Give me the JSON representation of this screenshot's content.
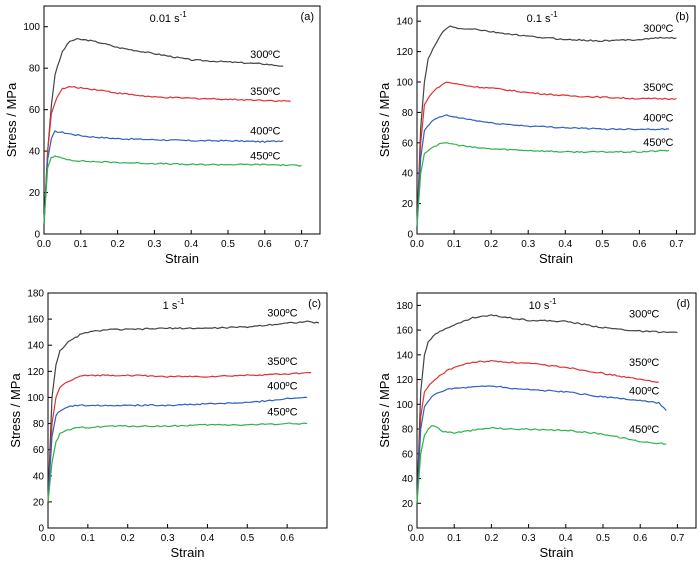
{
  "colors": {
    "300": "#444444",
    "350": "#e03131",
    "400": "#2f5fc4",
    "450": "#2fb24a"
  },
  "chart_data": [
    {
      "type": "line",
      "panel": "(a)",
      "rate": "0.01 s",
      "rate_exp": "-1",
      "xlabel": "Strain",
      "ylabel": "Stress / MPa",
      "xlim": [
        0,
        0.75
      ],
      "ylim": [
        0,
        110
      ],
      "xticks": [
        "0.0",
        "0.1",
        "0.2",
        "0.3",
        "0.4",
        "0.5",
        "0.6",
        "0.7"
      ],
      "yticks": [
        "0",
        "20",
        "40",
        "60",
        "80",
        "100"
      ],
      "series": [
        {
          "name": "300ºC",
          "temp": "300",
          "label_x": 0.56,
          "label_y": 85,
          "x": [
            0,
            0.01,
            0.02,
            0.03,
            0.05,
            0.07,
            0.09,
            0.12,
            0.16,
            0.2,
            0.3,
            0.4,
            0.5,
            0.6,
            0.65
          ],
          "y": [
            5,
            40,
            62,
            77,
            88,
            93,
            94,
            93.5,
            92,
            90,
            87,
            84,
            83,
            82,
            81
          ]
        },
        {
          "name": "350ºC",
          "temp": "350",
          "label_x": 0.56,
          "label_y": 67,
          "x": [
            0,
            0.01,
            0.02,
            0.035,
            0.05,
            0.07,
            0.1,
            0.15,
            0.2,
            0.3,
            0.4,
            0.5,
            0.6,
            0.67
          ],
          "y": [
            5,
            40,
            58,
            66,
            70,
            71,
            70.5,
            69.5,
            68,
            66,
            65.5,
            65,
            64.5,
            64
          ]
        },
        {
          "name": "400ºC",
          "temp": "400",
          "label_x": 0.56,
          "label_y": 48,
          "x": [
            0,
            0.01,
            0.02,
            0.03,
            0.05,
            0.08,
            0.12,
            0.2,
            0.3,
            0.4,
            0.5,
            0.6,
            0.65
          ],
          "y": [
            5,
            36,
            46,
            49.5,
            49,
            48,
            47,
            46,
            45.5,
            45,
            45,
            44.5,
            45
          ]
        },
        {
          "name": "450ºC",
          "temp": "450",
          "label_x": 0.56,
          "label_y": 36,
          "x": [
            0,
            0.01,
            0.02,
            0.03,
            0.05,
            0.08,
            0.12,
            0.2,
            0.3,
            0.4,
            0.5,
            0.6,
            0.7
          ],
          "y": [
            5,
            32,
            37,
            37.5,
            36.5,
            35.5,
            35,
            34.5,
            34,
            33.5,
            33.5,
            33.5,
            33
          ]
        }
      ]
    },
    {
      "type": "line",
      "panel": "(b)",
      "rate": "0.1 s",
      "rate_exp": "-1",
      "xlabel": "Strain",
      "ylabel": "Stress / MPa",
      "xlim": [
        0,
        0.75
      ],
      "ylim": [
        0,
        150
      ],
      "xticks": [
        "0.0",
        "0.1",
        "0.2",
        "0.3",
        "0.4",
        "0.5",
        "0.6",
        "0.7"
      ],
      "yticks": [
        "0",
        "20",
        "40",
        "60",
        "80",
        "100",
        "120",
        "140"
      ],
      "series": [
        {
          "name": "300ºC",
          "temp": "300",
          "label_x": 0.61,
          "label_y": 133,
          "x": [
            0,
            0.01,
            0.02,
            0.03,
            0.05,
            0.07,
            0.09,
            0.11,
            0.15,
            0.2,
            0.3,
            0.4,
            0.5,
            0.6,
            0.65,
            0.7
          ],
          "y": [
            5,
            70,
            100,
            115,
            125,
            133,
            137,
            135,
            135,
            133,
            130,
            128,
            127,
            128,
            129,
            129
          ]
        },
        {
          "name": "350ºC",
          "temp": "350",
          "label_x": 0.61,
          "label_y": 94,
          "x": [
            0,
            0.01,
            0.02,
            0.04,
            0.06,
            0.08,
            0.1,
            0.15,
            0.2,
            0.3,
            0.4,
            0.5,
            0.6,
            0.7
          ],
          "y": [
            5,
            60,
            85,
            93,
            97,
            100,
            99,
            97,
            96,
            93,
            91,
            90,
            89,
            89
          ]
        },
        {
          "name": "400ºC",
          "temp": "400",
          "label_x": 0.61,
          "label_y": 74,
          "x": [
            0,
            0.01,
            0.02,
            0.04,
            0.06,
            0.08,
            0.1,
            0.15,
            0.2,
            0.3,
            0.4,
            0.5,
            0.6,
            0.68
          ],
          "y": [
            5,
            50,
            68,
            74,
            77,
            78,
            77,
            75,
            73,
            71,
            70,
            69,
            69,
            69
          ]
        },
        {
          "name": "450ºC",
          "temp": "450",
          "label_x": 0.61,
          "label_y": 58,
          "x": [
            0,
            0.01,
            0.02,
            0.04,
            0.06,
            0.08,
            0.1,
            0.15,
            0.2,
            0.3,
            0.4,
            0.5,
            0.6,
            0.68
          ],
          "y": [
            5,
            40,
            53,
            57,
            59,
            60,
            59,
            57,
            56,
            55,
            54,
            54,
            54,
            55
          ]
        }
      ]
    },
    {
      "type": "line",
      "panel": "(c)",
      "rate": "1 s",
      "rate_exp": "-1",
      "xlabel": "Strain",
      "ylabel": "Stress / MPa",
      "xlim": [
        0,
        0.7
      ],
      "ylim": [
        0,
        180
      ],
      "xticks": [
        "0.0",
        "0.1",
        "0.2",
        "0.3",
        "0.4",
        "0.5",
        "0.6"
      ],
      "yticks": [
        "0",
        "20",
        "40",
        "60",
        "80",
        "100",
        "120",
        "140",
        "160",
        "180"
      ],
      "series": [
        {
          "name": "300ºC",
          "temp": "300",
          "label_x": 0.55,
          "label_y": 162,
          "x": [
            0,
            0.01,
            0.02,
            0.03,
            0.05,
            0.08,
            0.1,
            0.15,
            0.2,
            0.3,
            0.4,
            0.5,
            0.6,
            0.65,
            0.68
          ],
          "y": [
            20,
            100,
            125,
            136,
            142,
            148,
            150,
            152,
            152,
            153,
            153,
            154,
            157,
            158,
            157
          ]
        },
        {
          "name": "350ºC",
          "temp": "350",
          "label_x": 0.55,
          "label_y": 125,
          "x": [
            0,
            0.01,
            0.02,
            0.03,
            0.05,
            0.08,
            0.1,
            0.15,
            0.2,
            0.3,
            0.4,
            0.5,
            0.6,
            0.66
          ],
          "y": [
            20,
            80,
            100,
            108,
            112,
            116,
            117,
            117,
            117,
            116,
            116,
            117,
            118,
            119
          ]
        },
        {
          "name": "400ºC",
          "temp": "400",
          "label_x": 0.55,
          "label_y": 106,
          "x": [
            0,
            0.01,
            0.02,
            0.03,
            0.05,
            0.08,
            0.1,
            0.15,
            0.2,
            0.3,
            0.4,
            0.5,
            0.6,
            0.65
          ],
          "y": [
            20,
            70,
            86,
            90,
            93,
            94,
            94,
            94,
            94,
            94,
            95,
            96,
            99,
            100
          ]
        },
        {
          "name": "450ºC",
          "temp": "450",
          "label_x": 0.55,
          "label_y": 86,
          "x": [
            0,
            0.01,
            0.02,
            0.03,
            0.05,
            0.08,
            0.1,
            0.15,
            0.2,
            0.3,
            0.4,
            0.5,
            0.6,
            0.65
          ],
          "y": [
            20,
            50,
            66,
            72,
            75,
            77,
            77,
            78,
            78,
            78,
            79,
            79,
            80,
            80
          ]
        }
      ]
    },
    {
      "type": "line",
      "panel": "(d)",
      "rate": "10 s",
      "rate_exp": "-1",
      "xlabel": "Strain",
      "ylabel": "Stress / MPa",
      "xlim": [
        0,
        0.75
      ],
      "ylim": [
        0,
        190
      ],
      "xticks": [
        "0.0",
        "0.1",
        "0.2",
        "0.3",
        "0.4",
        "0.5",
        "0.6",
        "0.7"
      ],
      "yticks": [
        "0",
        "20",
        "40",
        "60",
        "80",
        "100",
        "120",
        "140",
        "160",
        "180"
      ],
      "series": [
        {
          "name": "300ºC",
          "temp": "300",
          "label_x": 0.57,
          "label_y": 170,
          "x": [
            0,
            0.01,
            0.02,
            0.03,
            0.05,
            0.08,
            0.1,
            0.15,
            0.2,
            0.25,
            0.3,
            0.4,
            0.5,
            0.6,
            0.7
          ],
          "y": [
            20,
            110,
            140,
            150,
            157,
            162,
            164,
            170,
            172,
            170,
            168,
            167,
            162,
            159,
            158
          ]
        },
        {
          "name": "350ºC",
          "temp": "350",
          "label_x": 0.57,
          "label_y": 131,
          "x": [
            0,
            0.01,
            0.02,
            0.04,
            0.06,
            0.08,
            0.1,
            0.15,
            0.2,
            0.25,
            0.3,
            0.4,
            0.5,
            0.6,
            0.65
          ],
          "y": [
            20,
            90,
            110,
            118,
            123,
            127,
            130,
            134,
            135,
            134,
            133,
            130,
            125,
            120,
            118
          ]
        },
        {
          "name": "400ºC",
          "temp": "400",
          "label_x": 0.57,
          "label_y": 108,
          "x": [
            0,
            0.01,
            0.02,
            0.04,
            0.06,
            0.08,
            0.1,
            0.15,
            0.2,
            0.25,
            0.3,
            0.4,
            0.5,
            0.6,
            0.65,
            0.67
          ],
          "y": [
            20,
            80,
            98,
            106,
            110,
            112,
            113,
            114,
            115,
            113,
            112,
            110,
            106,
            103,
            101,
            95
          ]
        },
        {
          "name": "450ºC",
          "temp": "450",
          "label_x": 0.57,
          "label_y": 77,
          "x": [
            0,
            0.01,
            0.02,
            0.03,
            0.04,
            0.05,
            0.07,
            0.1,
            0.15,
            0.2,
            0.25,
            0.3,
            0.35,
            0.4,
            0.5,
            0.6,
            0.67
          ],
          "y": [
            20,
            60,
            75,
            80,
            83,
            82,
            78,
            77,
            79,
            81,
            80,
            80,
            79,
            79,
            76,
            70,
            68
          ]
        }
      ]
    }
  ]
}
